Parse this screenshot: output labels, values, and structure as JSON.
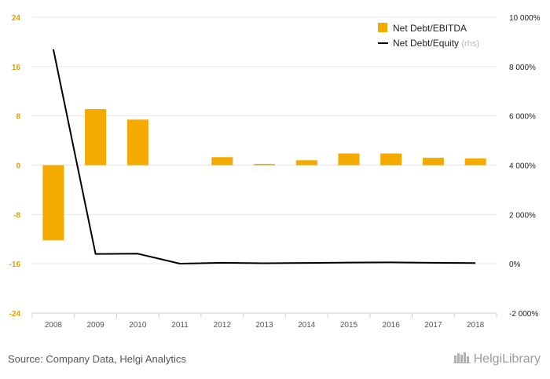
{
  "colors": {
    "bar": "#f5aa00",
    "line": "#000000",
    "grid": "#e6e6e6",
    "left_tick": "#e0a000",
    "right_tick": "#222222",
    "x_tick": "#555555"
  },
  "chart_data": {
    "type": "bar+line",
    "categories": [
      "2008",
      "2009",
      "2010",
      "2011",
      "2012",
      "2013",
      "2014",
      "2015",
      "2016",
      "2017",
      "2018"
    ],
    "series": [
      {
        "name": "Net Debt/EBITDA",
        "type": "bar",
        "axis": "left",
        "values": [
          -12.2,
          9.1,
          7.4,
          0.0,
          1.3,
          0.2,
          0.8,
          1.9,
          1.9,
          1.2,
          1.1
        ]
      },
      {
        "name": "Net Debt/Equity",
        "name_suffix": "(rhs)",
        "type": "line",
        "axis": "right",
        "values": [
          8700,
          400,
          410,
          5,
          40,
          20,
          35,
          50,
          55,
          40,
          30
        ]
      }
    ],
    "left_axis": {
      "ylim": [
        -24,
        24
      ],
      "ticks": [
        24,
        16,
        8,
        0,
        -8,
        -16,
        -24
      ],
      "tick_labels": [
        "24",
        "16",
        "8",
        "0",
        "-8",
        "-16",
        "-24"
      ]
    },
    "right_axis": {
      "ylim": [
        -2000,
        10000
      ],
      "ticks": [
        10000,
        8000,
        6000,
        4000,
        2000,
        0,
        -2000
      ],
      "tick_labels": [
        "10 000%",
        "8 000%",
        "6 000%",
        "4 000%",
        "2 000%",
        "0%",
        "-2 000%"
      ]
    },
    "grid": true,
    "legend_position": "top-right"
  },
  "footer": {
    "source": "Source: Company Data, Helgi Analytics",
    "logo_text": "HelgiLibrary"
  }
}
